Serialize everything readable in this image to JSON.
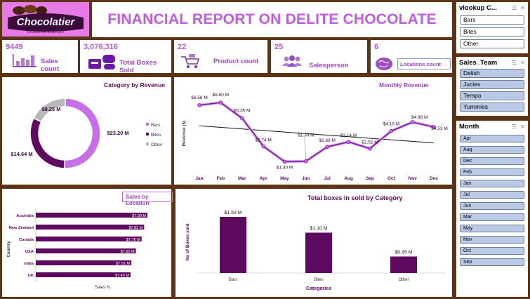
{
  "logo": {
    "text": "Chocolatier",
    "tagline": "CHOCOLATE & DELIGHT"
  },
  "header": {
    "title": "FINANCIAL REPORT ON DELITE CHOCOLATE"
  },
  "kpis": {
    "sales_count": {
      "value": "9449",
      "label": "Sales count",
      "icon": "bar-chart-icon"
    },
    "boxes_sold": {
      "value": "3,076,316",
      "label": "Total Boxes Sold",
      "icon": "boxes-icon"
    },
    "product_count": {
      "value": "22",
      "label": "Product count",
      "icon": "cart-icon"
    },
    "salesperson": {
      "value": "25",
      "label": "Salesperson",
      "icon": "people-icon"
    },
    "locations": {
      "value": "6",
      "label": "Locations count",
      "icon": "globe-icon"
    }
  },
  "colors": {
    "purple": "#5e0a5e",
    "light_purple": "#c86ee8",
    "grey": "#b8b8b8",
    "accent": "#b45cd6",
    "frame": "#5b3418"
  },
  "slicers": {
    "vlookup": {
      "title": "vlookup C...",
      "items": [
        "Bars",
        "Bites",
        "Other"
      ]
    },
    "sales_team": {
      "title": "Sales_Team",
      "items": [
        "Delish",
        "Jucies",
        "Tempo",
        "Yummies"
      ]
    },
    "month": {
      "title": "Month",
      "items": [
        "Apr",
        "Aug",
        "Dec",
        "Feb",
        "Jan",
        "Jul",
        "Jun",
        "Mar",
        "May",
        "Nov",
        "Oct",
        "Sep"
      ]
    }
  },
  "chart_data": [
    {
      "type": "pie",
      "title": "Category by Revenue",
      "categories": [
        "Bars",
        "Bites",
        "Other"
      ],
      "values": [
        23.2,
        14.64,
        8.25
      ],
      "labels": [
        "$23.20 M",
        "$14.64 M",
        "$8.25 M"
      ],
      "colors": [
        "#c86ee8",
        "#5e0a5e",
        "#b8b8b8"
      ],
      "legend": "right"
    },
    {
      "type": "line",
      "title": "Monthly Revenue",
      "ylabel": "Revenue ($)",
      "categories": [
        "Jan",
        "Feb",
        "Mar",
        "Apr",
        "May",
        "Jun",
        "Jul",
        "Aug",
        "Sep",
        "Oct",
        "Nov",
        "Dec"
      ],
      "values": [
        6.56,
        6.8,
        5.35,
        2.74,
        1.3,
        1.34,
        2.68,
        3.14,
        2.52,
        4.15,
        4.98,
        4.53
      ],
      "labels": [
        "$6.56 M",
        "$6.80 M",
        "$5.35 M",
        "$2.74 M",
        "$1.30 M",
        "$1.34 M",
        "$2.68 M",
        "$3.14 M",
        "$2.52 M",
        "$4.15 M",
        "$4.98 M",
        "$4.53 M"
      ],
      "trendline": true
    },
    {
      "type": "bar",
      "orientation": "horizontal",
      "title": "Sales by Location",
      "xlabel": "Sales %",
      "ylabel": "Country",
      "categories": [
        "Australia",
        "New Zealand",
        "Canada",
        "USA",
        "India",
        "UK"
      ],
      "values": [
        7.9,
        7.82,
        7.76,
        7.62,
        7.51,
        7.49
      ],
      "labels": [
        "$7.90 M",
        "$7.82 M",
        "$7.76 M",
        "$7.62 M",
        "$7.51 M",
        "$7.49 M"
      ]
    },
    {
      "type": "bar",
      "title": "Total boxes in sold by Category",
      "xlabel": "Categories",
      "ylabel": "No of Boxes sold",
      "categories": [
        "Bars",
        "Bites",
        "Other"
      ],
      "values": [
        1.53,
        1.1,
        0.45
      ],
      "labels": [
        "$1.53 M",
        "$1.10 M",
        "$0.45 M"
      ]
    }
  ]
}
